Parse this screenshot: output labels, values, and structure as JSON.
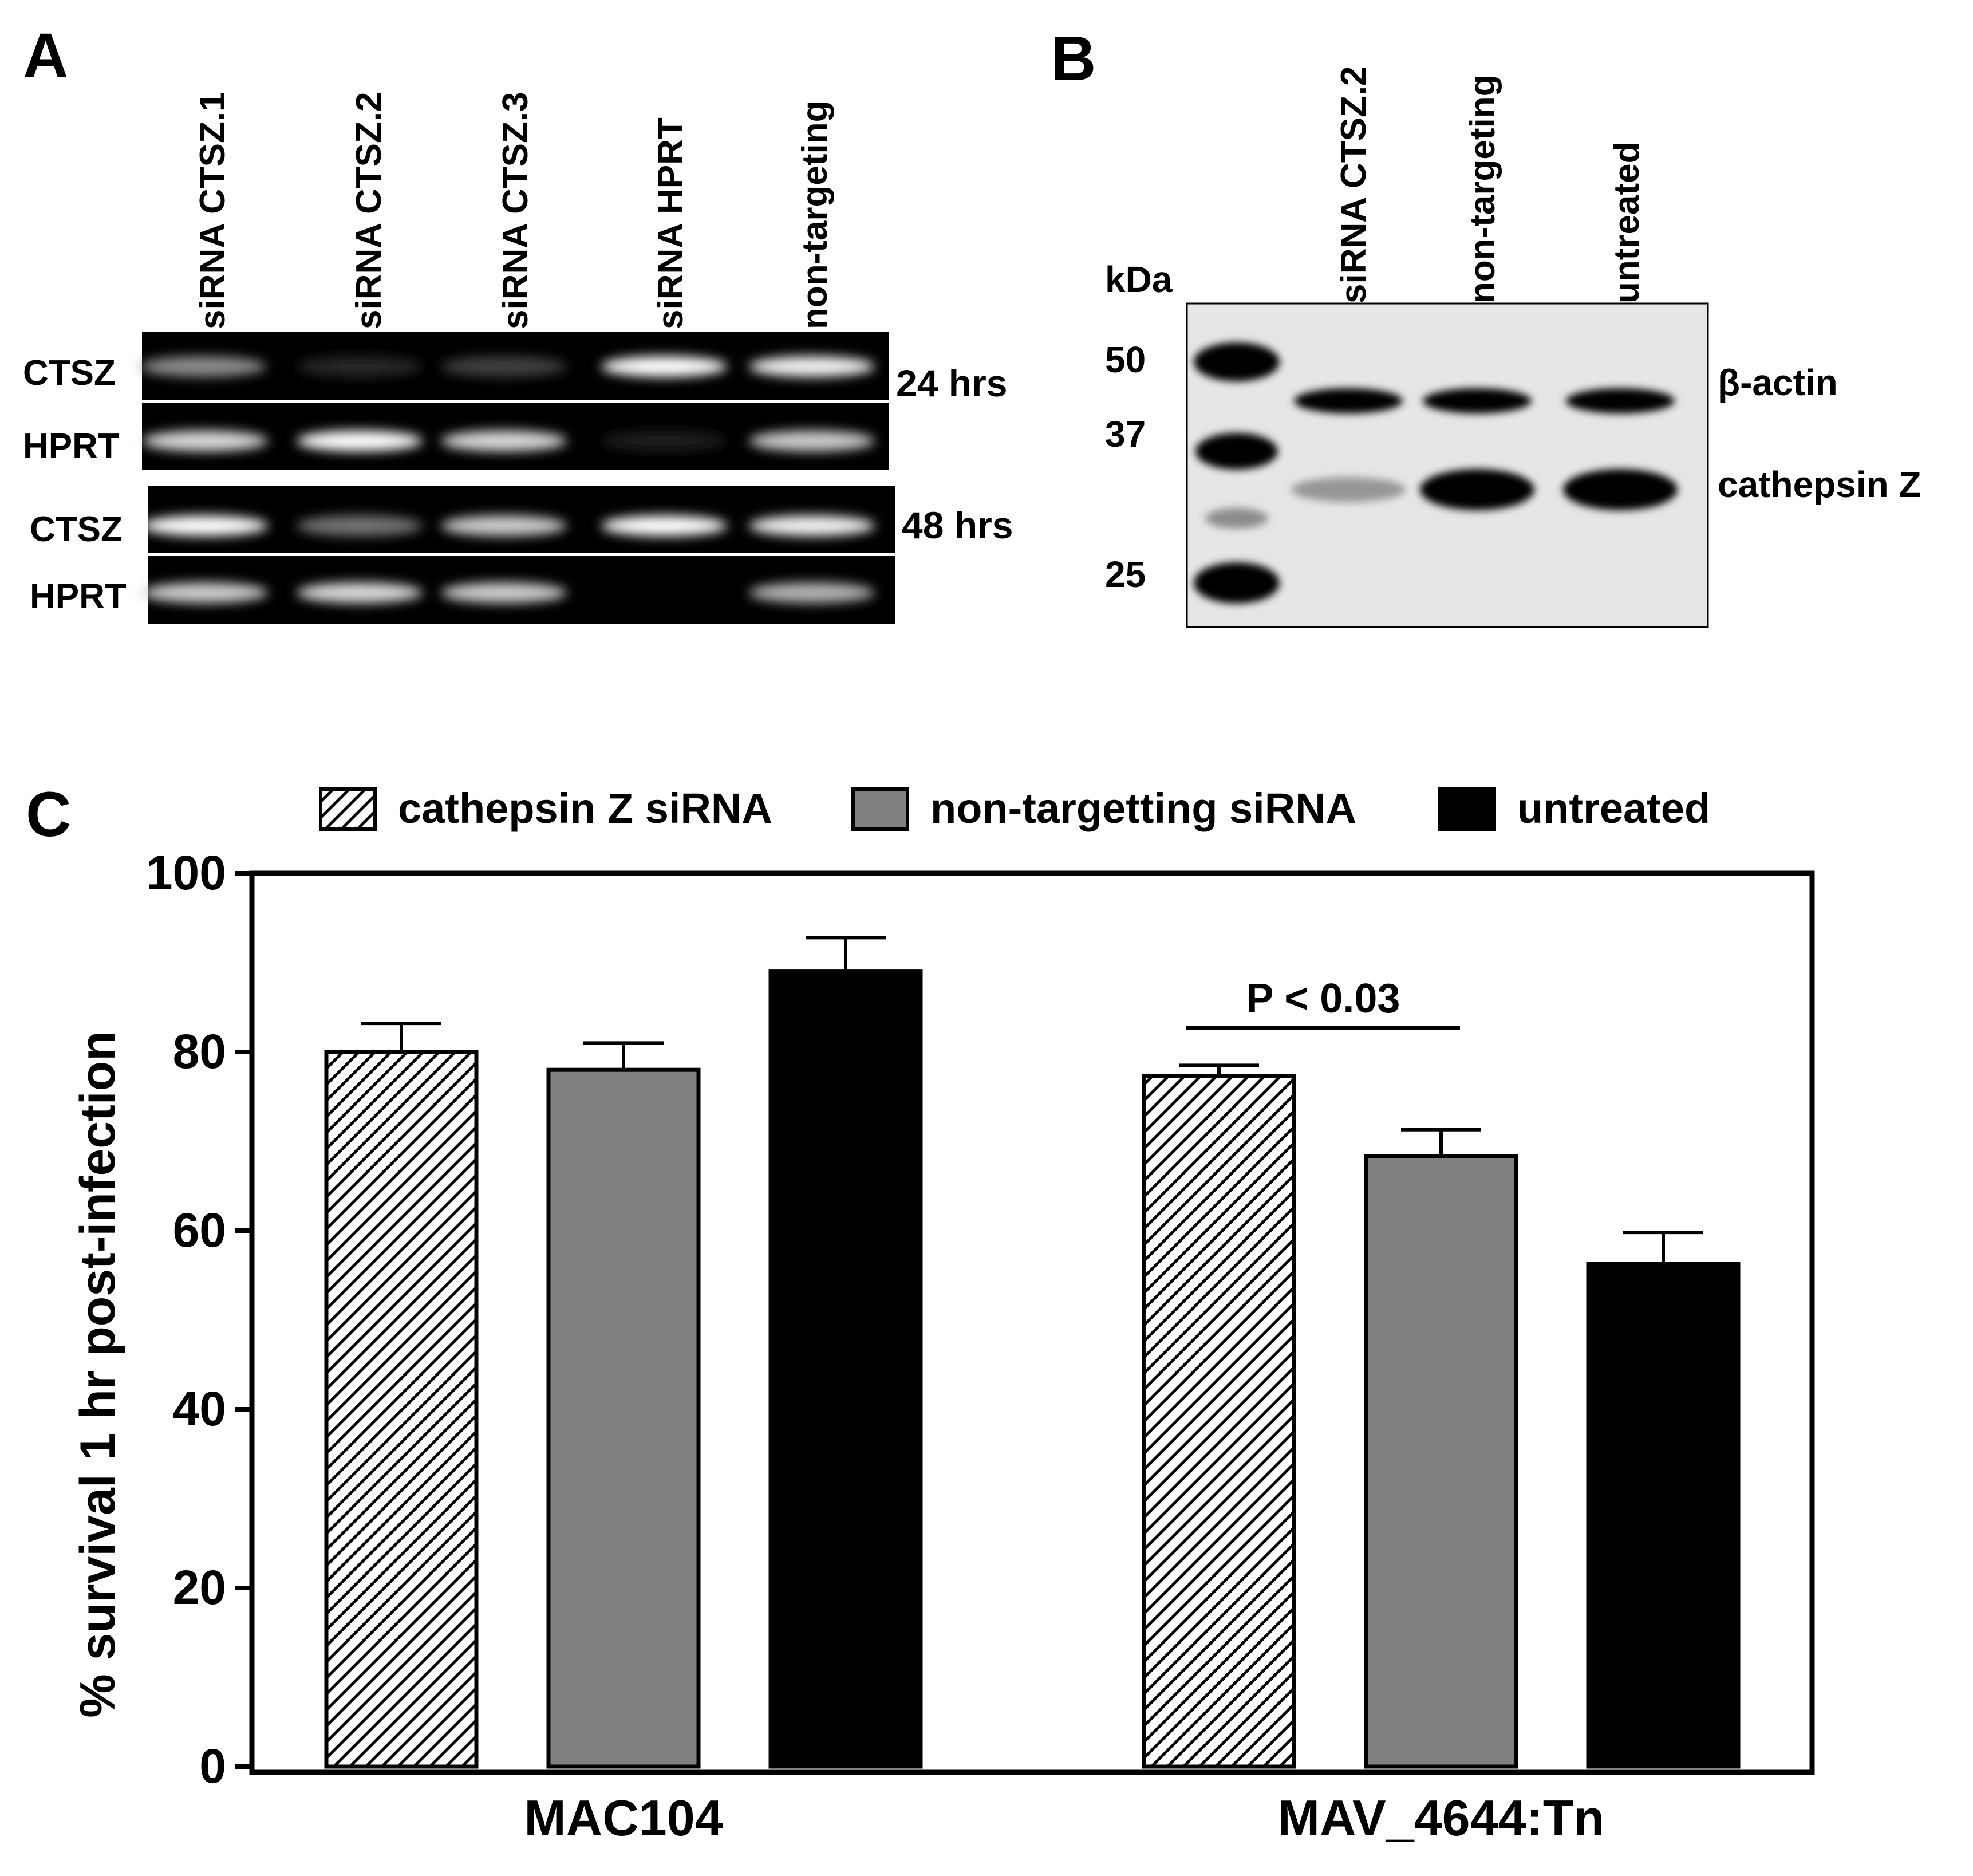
{
  "panel_a": {
    "label": "A",
    "lanes": [
      "siRNA CTSZ.1",
      "siRNA CTSZ.2",
      "siRNA CTSZ.3",
      "siRNA HPRT",
      "non-targeting"
    ],
    "rows": [
      "CTSZ",
      "HPRT",
      "CTSZ",
      "HPRT"
    ],
    "times": [
      "24 hrs",
      "48 hrs"
    ],
    "band_intensity": [
      [
        0.55,
        0.15,
        0.25,
        1.0,
        0.95
      ],
      [
        0.85,
        1.0,
        0.85,
        0.1,
        0.8
      ],
      [
        1.0,
        0.45,
        0.8,
        1.0,
        0.95
      ],
      [
        0.8,
        0.85,
        0.8,
        0.0,
        0.7
      ]
    ]
  },
  "panel_b": {
    "label": "B",
    "unit": "kDa",
    "markers": [
      "50",
      "37",
      "25"
    ],
    "lanes": [
      "siRNA CTSZ.2",
      "non-targeting",
      "untreated"
    ],
    "band_labels": [
      "β-actin",
      "cathepsin Z"
    ],
    "band_intensity": {
      "beta_actin": [
        0.9,
        0.9,
        0.9
      ],
      "cathepsin_z": [
        0.35,
        1.0,
        1.0
      ]
    }
  },
  "panel_c": {
    "label": "C"
  },
  "chart_data": {
    "type": "bar",
    "categories": [
      "MAC104",
      "MAV_4644:Tn"
    ],
    "series": [
      {
        "name": "cathepsin Z siRNA",
        "values": [
          80,
          77.3
        ],
        "errors": [
          3.2,
          1.2
        ],
        "fill": "hatch"
      },
      {
        "name": "non-targetting siRNA",
        "values": [
          78,
          68.3
        ],
        "errors": [
          3.0,
          3.0
        ],
        "fill": "#808080"
      },
      {
        "name": "untreated",
        "values": [
          89,
          56.3
        ],
        "errors": [
          3.8,
          3.5
        ],
        "fill": "#000000"
      }
    ],
    "ylabel": "% survival 1 hr post-infection",
    "xlabel": "",
    "ylim": [
      0,
      100
    ],
    "yticks": [
      0,
      20,
      40,
      60,
      80,
      100
    ],
    "legend_position": "top",
    "annotation": "P < 0.03"
  }
}
